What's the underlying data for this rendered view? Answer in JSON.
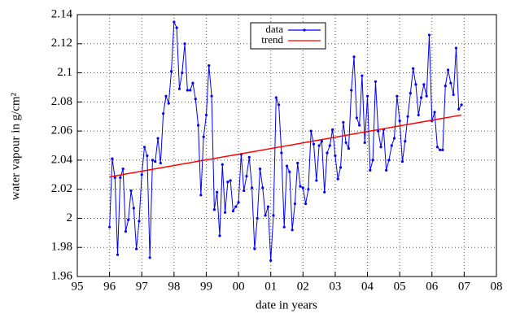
{
  "chart_data": {
    "type": "line",
    "xlabel": "date in years",
    "ylabel": "water vapour in g/cm²",
    "xlim": [
      1995,
      2008
    ],
    "xticks": [
      {
        "value": 1995,
        "label": "95"
      },
      {
        "value": 1996,
        "label": "96"
      },
      {
        "value": 1997,
        "label": "97"
      },
      {
        "value": 1998,
        "label": "98"
      },
      {
        "value": 1999,
        "label": "99"
      },
      {
        "value": 2000,
        "label": "00"
      },
      {
        "value": 2001,
        "label": "01"
      },
      {
        "value": 2002,
        "label": "02"
      },
      {
        "value": 2003,
        "label": "03"
      },
      {
        "value": 2004,
        "label": "04"
      },
      {
        "value": 2005,
        "label": "05"
      },
      {
        "value": 2006,
        "label": "06"
      },
      {
        "value": 2007,
        "label": "07"
      },
      {
        "value": 2008,
        "label": "08"
      }
    ],
    "ylim": [
      1.96,
      2.14
    ],
    "yticks": [
      1.96,
      1.98,
      2,
      2.02,
      2.04,
      2.06,
      2.08,
      2.1,
      2.12,
      2.14
    ],
    "grid": true,
    "legend": "top-center",
    "series": [
      {
        "name": "data",
        "color": "#0000ff",
        "markers": true,
        "x": [
          1996,
          1996.083,
          1996.167,
          1996.25,
          1996.333,
          1996.417,
          1996.5,
          1996.583,
          1996.667,
          1996.75,
          1996.833,
          1996.917,
          1997,
          1997.083,
          1997.167,
          1997.25,
          1997.333,
          1997.417,
          1997.5,
          1997.583,
          1997.667,
          1997.75,
          1997.833,
          1997.917,
          1998,
          1998.083,
          1998.167,
          1998.25,
          1998.333,
          1998.417,
          1998.5,
          1998.583,
          1998.667,
          1998.75,
          1998.833,
          1998.917,
          1999,
          1999.083,
          1999.167,
          1999.25,
          1999.333,
          1999.417,
          1999.5,
          1999.583,
          1999.667,
          1999.75,
          1999.833,
          1999.917,
          2000,
          2000.083,
          2000.167,
          2000.25,
          2000.333,
          2000.417,
          2000.5,
          2000.583,
          2000.667,
          2000.75,
          2000.833,
          2000.917,
          2001,
          2001.083,
          2001.167,
          2001.25,
          2001.333,
          2001.417,
          2001.5,
          2001.583,
          2001.667,
          2001.75,
          2001.833,
          2001.917,
          2002,
          2002.083,
          2002.167,
          2002.25,
          2002.333,
          2002.417,
          2002.5,
          2002.583,
          2002.667,
          2002.75,
          2002.833,
          2002.917,
          2003,
          2003.083,
          2003.167,
          2003.25,
          2003.333,
          2003.417,
          2003.5,
          2003.583,
          2003.667,
          2003.75,
          2003.833,
          2003.917,
          2004,
          2004.083,
          2004.167,
          2004.25,
          2004.333,
          2004.417,
          2004.5,
          2004.583,
          2004.667,
          2004.75,
          2004.833,
          2004.917,
          2005,
          2005.083,
          2005.167,
          2005.25,
          2005.333,
          2005.417,
          2005.5,
          2005.583,
          2005.667,
          2005.75,
          2005.833,
          2005.917,
          2006,
          2006.083,
          2006.167,
          2006.25,
          2006.333,
          2006.417,
          2006.5,
          2006.583,
          2006.667,
          2006.75,
          2006.833,
          2006.917
        ],
        "values": [
          1.994,
          2.041,
          2.028,
          1.975,
          2.028,
          2.034,
          1.991,
          1.999,
          2.019,
          2.007,
          1.979,
          1.998,
          2.03,
          2.049,
          2.043,
          1.973,
          2.04,
          2.039,
          2.055,
          2.038,
          2.072,
          2.084,
          2.079,
          2.101,
          2.135,
          2.131,
          2.089,
          2.1,
          2.12,
          2.088,
          2.088,
          2.093,
          2.082,
          2.064,
          2.016,
          2.056,
          2.071,
          2.105,
          2.084,
          2.006,
          2.018,
          1.988,
          2.037,
          2.004,
          2.025,
          2.026,
          2.005,
          2.008,
          2.011,
          2.044,
          2.019,
          2.029,
          2.042,
          2.021,
          1.979,
          2.0,
          2.034,
          2.021,
          2.002,
          2.008,
          1.971,
          2.002,
          2.083,
          2.078,
          2.045,
          1.994,
          2.036,
          2.032,
          1.992,
          2.01,
          2.038,
          2.022,
          2.021,
          2.01,
          2.02,
          2.06,
          2.051,
          2.026,
          2.05,
          2.053,
          2.018,
          2.045,
          2.05,
          2.061,
          2.043,
          2.027,
          2.035,
          2.066,
          2.052,
          2.048,
          2.088,
          2.111,
          2.069,
          2.064,
          2.098,
          2.052,
          2.084,
          2.033,
          2.04,
          2.094,
          2.06,
          2.049,
          2.061,
          2.033,
          2.04,
          2.05,
          2.055,
          2.084,
          2.067,
          2.039,
          2.053,
          2.07,
          2.086,
          2.103,
          2.092,
          2.071,
          2.083,
          2.092,
          2.084,
          2.126,
          2.067,
          2.073,
          2.049,
          2.047,
          2.047,
          2.091,
          2.102,
          2.093,
          2.085,
          2.117,
          2.075,
          2.078
        ]
      },
      {
        "name": "trend",
        "color": "#ff0000",
        "markers": false,
        "x": [
          1996,
          2006.917
        ],
        "values": [
          2.0285,
          2.071
        ]
      }
    ]
  }
}
